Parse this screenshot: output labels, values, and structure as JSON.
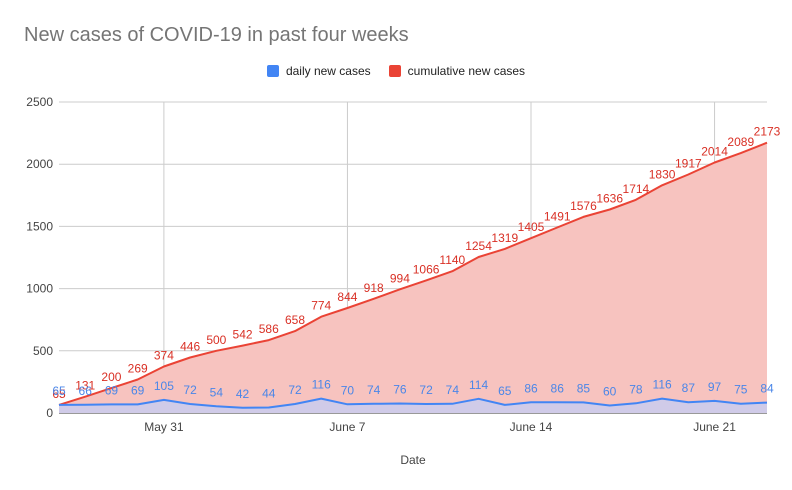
{
  "chart_data": {
    "type": "area",
    "title": "New cases of COVID-19 in past four weeks",
    "xlabel": "Date",
    "ylabel": "",
    "ylim": [
      0,
      2500
    ],
    "yticks": [
      0,
      500,
      1000,
      1500,
      2000,
      2500
    ],
    "xtick_labels": [
      {
        "label": "May 31",
        "index": 4
      },
      {
        "label": "June 7",
        "index": 11
      },
      {
        "label": "June 14",
        "index": 18
      },
      {
        "label": "June 21",
        "index": 25
      }
    ],
    "grid": true,
    "legend_position": "top",
    "series": [
      {
        "name": "daily new cases",
        "color": "#4285f4",
        "fill": "#c9cdef",
        "values": [
          65,
          66,
          69,
          69,
          105,
          72,
          54,
          42,
          44,
          72,
          116,
          70,
          74,
          76,
          72,
          74,
          114,
          65,
          86,
          86,
          85,
          60,
          78,
          116,
          87,
          97,
          75,
          84
        ]
      },
      {
        "name": "cumulative new cases",
        "color": "#ea4335",
        "fill": "#f7c3bf",
        "values": [
          65,
          131,
          200,
          269,
          374,
          446,
          500,
          542,
          586,
          658,
          774,
          844,
          918,
          994,
          1066,
          1140,
          1254,
          1319,
          1405,
          1491,
          1576,
          1636,
          1714,
          1830,
          1917,
          2014,
          2089,
          2173
        ]
      }
    ]
  }
}
